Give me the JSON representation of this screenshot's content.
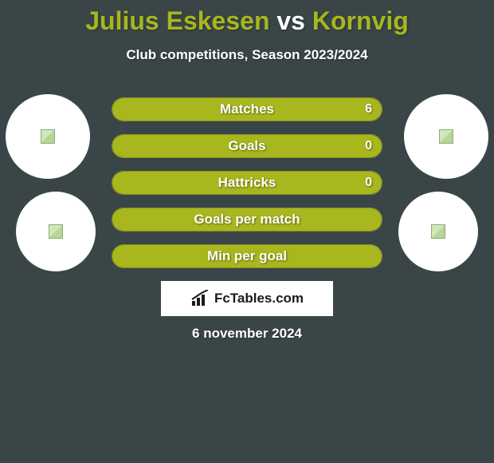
{
  "background_color": "#3a4548",
  "title": {
    "player1": "Julius Eskesen",
    "vs": "vs",
    "player2": "Kornvig",
    "player1_color": "#a7b71d",
    "vs_color": "#ffffff",
    "player2_color": "#a7b71d",
    "fontsize": 32
  },
  "subtitle": {
    "text": "Club competitions, Season 2023/2024",
    "color": "#ffffff",
    "fontsize": 17
  },
  "bars": {
    "border_color": "#8a8f1f",
    "fill_color": "#a7b71d",
    "empty_color": "transparent",
    "text_color": "#ffffff",
    "label_fontsize": 17,
    "value_fontsize": 16,
    "rows": [
      {
        "label": "Matches",
        "left": "",
        "right": "6",
        "fill_pct": 100
      },
      {
        "label": "Goals",
        "left": "",
        "right": "0",
        "fill_pct": 100
      },
      {
        "label": "Hattricks",
        "left": "",
        "right": "0",
        "fill_pct": 100
      },
      {
        "label": "Goals per match",
        "left": "",
        "right": "",
        "fill_pct": 100
      },
      {
        "label": "Min per goal",
        "left": "",
        "right": "",
        "fill_pct": 100
      }
    ]
  },
  "avatars": {
    "circle_bg": "#ffffff",
    "left": [
      {
        "size": 106
      },
      {
        "size": 100
      }
    ],
    "right": [
      {
        "size": 106
      },
      {
        "size": 100
      }
    ]
  },
  "logo": {
    "text": "FcTables.com",
    "bg": "#ffffff",
    "text_color": "#1a1a1a",
    "fontsize": 17
  },
  "date": {
    "text": "6 november 2024",
    "color": "#ffffff",
    "fontsize": 17
  }
}
